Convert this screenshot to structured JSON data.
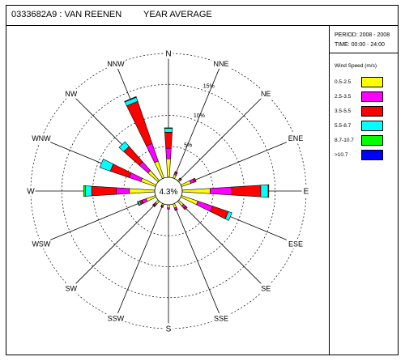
{
  "header": {
    "station": "0333682A9 : VAN REENEN",
    "period_label": "YEAR AVERAGE"
  },
  "meta": {
    "period": "PERIOD: 2008 - 2008",
    "time": "TIME: 00:00 - 24:00"
  },
  "chart_data": {
    "type": "windrose",
    "calm_percent": "4.3%",
    "directions": [
      "N",
      "NNE",
      "NE",
      "ENE",
      "E",
      "ESE",
      "SE",
      "SSE",
      "S",
      "SSW",
      "SW",
      "WSW",
      "W",
      "WNW",
      "NW",
      "NNW"
    ],
    "ring_labels": [
      "5%",
      "10%",
      "15%"
    ],
    "rings": [
      5,
      10,
      15
    ],
    "rmax": 20,
    "legend_title": "Wind Speed (m/s)",
    "bins": [
      {
        "label": "0.5-2.5",
        "color": "#ffff00"
      },
      {
        "label": "2.5-3.5",
        "color": "#ff00ff"
      },
      {
        "label": "3.5-5.5",
        "color": "#ff0000"
      },
      {
        "label": "5.5-8.7",
        "color": "#00ffff"
      },
      {
        "label": "8.7-10.7",
        "color": "#00ff00"
      },
      {
        "label": ">10.7",
        "color": "#0000ff"
      }
    ],
    "segments": {
      "N": [
        3.0,
        1.7,
        2.6,
        0.6,
        0.1,
        0.0
      ],
      "NNE": [
        0.6,
        0.3,
        0.2,
        0.0,
        0.0,
        0.0
      ],
      "NE": [
        0.3,
        0.2,
        0.1,
        0.0,
        0.0,
        0.0
      ],
      "ENE": [
        1.6,
        0.6,
        0.3,
        0.0,
        0.0,
        0.0
      ],
      "E": [
        4.5,
        3.5,
        4.7,
        1.2,
        0.1,
        0.0
      ],
      "ESE": [
        2.8,
        2.5,
        2.7,
        0.6,
        0.0,
        0.0
      ],
      "SE": [
        1.0,
        0.5,
        0.3,
        0.0,
        0.0,
        0.0
      ],
      "SSE": [
        0.7,
        0.3,
        0.1,
        0.0,
        0.0,
        0.0
      ],
      "S": [
        0.5,
        0.2,
        0.0,
        0.0,
        0.0,
        0.0
      ],
      "SSW": [
        0.3,
        0.2,
        0.1,
        0.0,
        0.0,
        0.0
      ],
      "SW": [
        0.6,
        0.3,
        0.2,
        0.1,
        0.0,
        0.0
      ],
      "WSW": [
        1.6,
        0.7,
        0.4,
        0.3,
        0.1,
        0.0
      ],
      "W": [
        4.1,
        2.1,
        4.0,
        1.0,
        0.3,
        0.0
      ],
      "WNW": [
        2.5,
        2.0,
        3.2,
        1.8,
        0.0,
        0.0
      ],
      "NW": [
        2.2,
        1.9,
        3.3,
        1.0,
        0.0,
        0.0
      ],
      "NNW": [
        2.9,
        3.0,
        7.2,
        0.7,
        0.0,
        0.1
      ]
    }
  }
}
